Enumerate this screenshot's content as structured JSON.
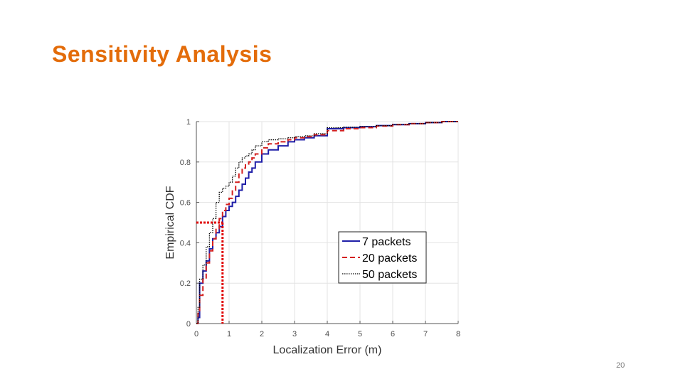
{
  "slide": {
    "title": "Sensitivity Analysis",
    "page_number": "20"
  },
  "colors": {
    "title": "#e36c0a",
    "series_7": "#1f1fa8",
    "series_20": "#d42020",
    "series_50": "#000000",
    "highlight": "#e00000"
  },
  "chart_data": {
    "type": "line",
    "title": "",
    "xlabel": "Localization Error (m)",
    "ylabel": "Empirical CDF",
    "xlim": [
      0,
      8
    ],
    "ylim": [
      0,
      1
    ],
    "xticks": [
      "0",
      "1",
      "2",
      "3",
      "4",
      "5",
      "6",
      "7",
      "8"
    ],
    "yticks": [
      "0",
      "0.2",
      "0.4",
      "0.6",
      "0.8",
      "1"
    ],
    "grid": true,
    "legend_position": "bottom-right",
    "series": [
      {
        "name": "7 packets",
        "style": "solid",
        "x": [
          0,
          0.05,
          0.1,
          0.2,
          0.3,
          0.4,
          0.5,
          0.6,
          0.7,
          0.8,
          0.9,
          1.0,
          1.1,
          1.2,
          1.3,
          1.4,
          1.5,
          1.6,
          1.7,
          1.8,
          2.0,
          2.2,
          2.5,
          2.8,
          3.0,
          3.3,
          3.6,
          4.0,
          4.5,
          5.0,
          5.5,
          6.0,
          6.5,
          7.0,
          7.5,
          8.0
        ],
        "y": [
          0,
          0.03,
          0.2,
          0.26,
          0.31,
          0.37,
          0.42,
          0.45,
          0.48,
          0.53,
          0.56,
          0.58,
          0.6,
          0.63,
          0.66,
          0.69,
          0.72,
          0.75,
          0.77,
          0.8,
          0.84,
          0.86,
          0.88,
          0.9,
          0.91,
          0.92,
          0.93,
          0.965,
          0.97,
          0.975,
          0.98,
          0.985,
          0.99,
          0.995,
          1.0,
          1.0
        ]
      },
      {
        "name": "20 packets",
        "style": "dashed",
        "x": [
          0,
          0.05,
          0.1,
          0.2,
          0.3,
          0.4,
          0.5,
          0.6,
          0.7,
          0.8,
          0.9,
          1.0,
          1.1,
          1.2,
          1.3,
          1.4,
          1.5,
          1.6,
          1.7,
          1.8,
          2.0,
          2.2,
          2.5,
          2.8,
          3.0,
          3.3,
          3.6,
          4.0,
          4.5,
          5.0,
          5.5,
          6.0,
          6.5,
          7.0,
          7.5,
          8.0
        ],
        "y": [
          0,
          0.05,
          0.14,
          0.22,
          0.3,
          0.36,
          0.42,
          0.47,
          0.52,
          0.56,
          0.59,
          0.62,
          0.66,
          0.7,
          0.74,
          0.77,
          0.79,
          0.8,
          0.82,
          0.84,
          0.87,
          0.89,
          0.9,
          0.91,
          0.92,
          0.925,
          0.935,
          0.955,
          0.965,
          0.97,
          0.978,
          0.985,
          0.99,
          0.995,
          1.0,
          1.0
        ]
      },
      {
        "name": "50 packets",
        "style": "dotted",
        "x": [
          0,
          0.05,
          0.1,
          0.2,
          0.3,
          0.4,
          0.5,
          0.6,
          0.7,
          0.8,
          0.9,
          1.0,
          1.1,
          1.2,
          1.3,
          1.4,
          1.5,
          1.6,
          1.7,
          1.8,
          2.0,
          2.2,
          2.5,
          2.8,
          3.0,
          3.3,
          3.6,
          4.0,
          4.5,
          5.0,
          5.5,
          6.0,
          6.5,
          7.0,
          7.5,
          8.0
        ],
        "y": [
          0,
          0.08,
          0.22,
          0.29,
          0.38,
          0.45,
          0.52,
          0.6,
          0.65,
          0.67,
          0.68,
          0.7,
          0.73,
          0.77,
          0.8,
          0.82,
          0.83,
          0.84,
          0.86,
          0.88,
          0.9,
          0.91,
          0.915,
          0.92,
          0.925,
          0.93,
          0.94,
          0.97,
          0.972,
          0.975,
          0.98,
          0.985,
          0.99,
          0.995,
          1.0,
          1.0
        ]
      }
    ],
    "highlight": {
      "description": "median marker",
      "x": 0.8,
      "y": 0.5
    }
  }
}
